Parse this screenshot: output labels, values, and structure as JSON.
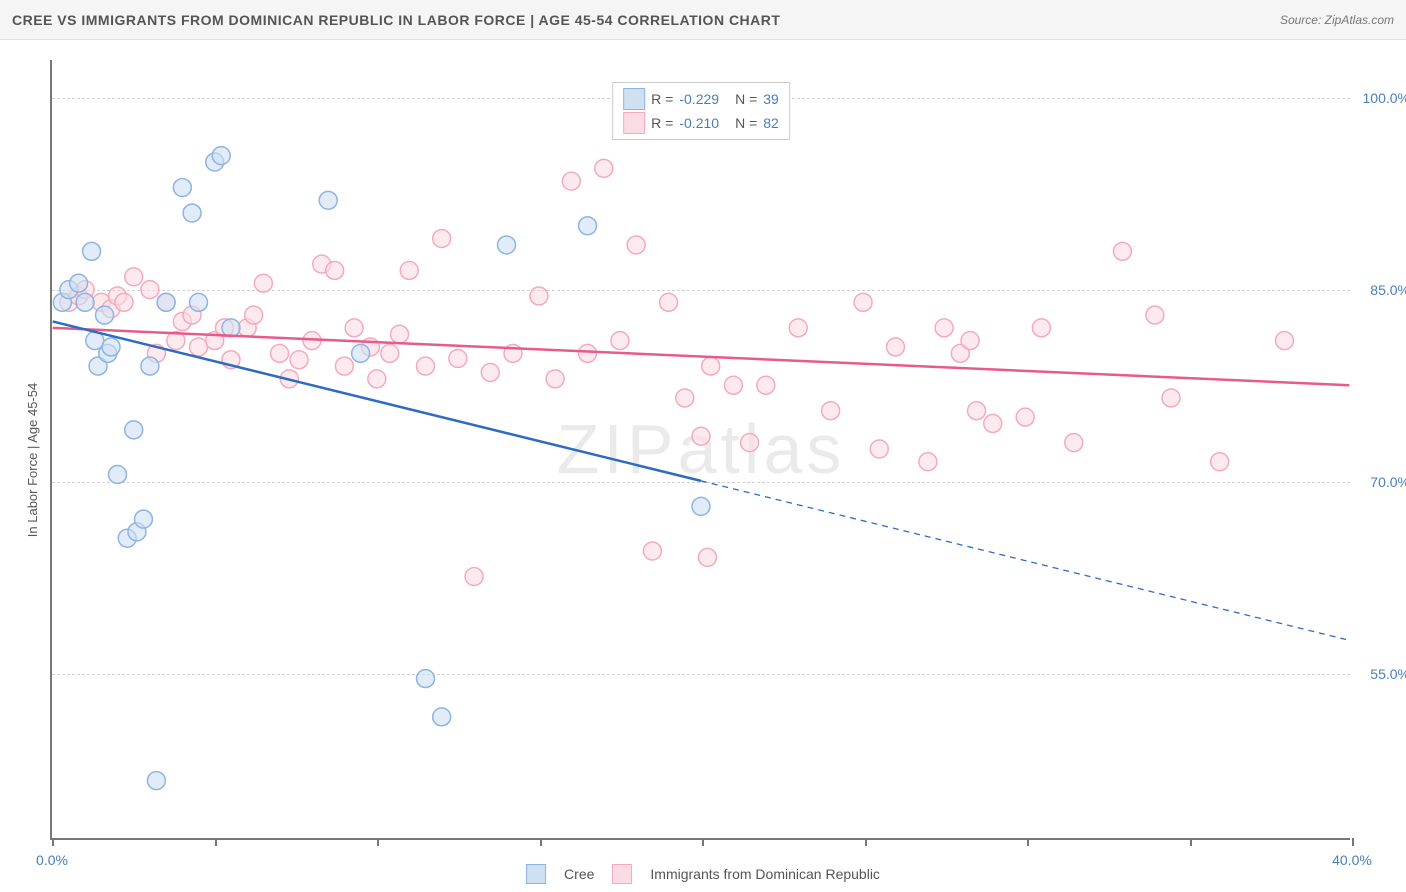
{
  "header": {
    "title": "CREE VS IMMIGRANTS FROM DOMINICAN REPUBLIC IN LABOR FORCE | AGE 45-54 CORRELATION CHART",
    "source": "Source: ZipAtlas.com"
  },
  "chart": {
    "type": "scatter",
    "y_axis_title": "In Labor Force | Age 45-54",
    "watermark": "ZIPatlas",
    "xlim": [
      0,
      40
    ],
    "ylim": [
      42,
      103
    ],
    "x_ticks": [
      0,
      5,
      10,
      15,
      20,
      25,
      30,
      35,
      40
    ],
    "x_tick_labels": {
      "0": "0.0%",
      "40": "40.0%"
    },
    "y_ticks": [
      55,
      70,
      85,
      100
    ],
    "y_tick_labels": {
      "55": "55.0%",
      "70": "70.0%",
      "85": "85.0%",
      "100": "100.0%"
    },
    "background_color": "#ffffff",
    "grid_color": "#d0d0d0",
    "axis_color": "#777777",
    "tick_label_color": "#4a7ebb",
    "marker_radius": 9,
    "marker_fill_opacity": 0.25,
    "marker_stroke_width": 1.5,
    "line_width": 2.5,
    "series": {
      "cree": {
        "label": "Cree",
        "color": "#8db4e2",
        "fill": "#cfe0f3",
        "line_color": "#2e6cc4",
        "R": "-0.229",
        "N": "39",
        "regression": {
          "x1": 0,
          "y1": 82.5,
          "x2": 20,
          "y2": 70,
          "x1_solid": 0,
          "x2_solid": 20,
          "x2_dash": 40,
          "y2_dash": 57.5
        },
        "points": [
          [
            0.3,
            84
          ],
          [
            0.5,
            85
          ],
          [
            0.8,
            85.5
          ],
          [
            1.0,
            84
          ],
          [
            1.2,
            88
          ],
          [
            1.3,
            81
          ],
          [
            1.4,
            79
          ],
          [
            1.6,
            83
          ],
          [
            1.7,
            80
          ],
          [
            1.8,
            80.5
          ],
          [
            2.0,
            70.5
          ],
          [
            2.3,
            65.5
          ],
          [
            2.5,
            74
          ],
          [
            2.6,
            66
          ],
          [
            2.8,
            67
          ],
          [
            3.0,
            79
          ],
          [
            3.2,
            46.5
          ],
          [
            3.5,
            84
          ],
          [
            4.0,
            93
          ],
          [
            4.3,
            91
          ],
          [
            4.5,
            84
          ],
          [
            5.0,
            95
          ],
          [
            5.2,
            95.5
          ],
          [
            5.5,
            82
          ],
          [
            8.5,
            92
          ],
          [
            9.5,
            80
          ],
          [
            11.5,
            54.5
          ],
          [
            12.0,
            51.5
          ],
          [
            14.0,
            88.5
          ],
          [
            16.5,
            90
          ],
          [
            20.0,
            68
          ]
        ]
      },
      "dominican": {
        "label": "Immigants from Dominican Republic",
        "label_display": "Immigrants from Dominican Republic",
        "color": "#f5a9bc",
        "fill": "#fbdce5",
        "line_color": "#e85a8a",
        "R": "-0.210",
        "N": "82",
        "regression": {
          "x1": 0,
          "y1": 82,
          "x2": 40,
          "y2": 77.5
        },
        "points": [
          [
            0.5,
            84
          ],
          [
            0.8,
            84.5
          ],
          [
            1.0,
            85
          ],
          [
            1.5,
            84
          ],
          [
            1.8,
            83.5
          ],
          [
            2.0,
            84.5
          ],
          [
            2.2,
            84
          ],
          [
            2.5,
            86
          ],
          [
            3.0,
            85
          ],
          [
            3.2,
            80
          ],
          [
            3.5,
            84
          ],
          [
            3.8,
            81
          ],
          [
            4.0,
            82.5
          ],
          [
            4.3,
            83
          ],
          [
            4.5,
            80.5
          ],
          [
            5.0,
            81
          ],
          [
            5.3,
            82
          ],
          [
            5.5,
            79.5
          ],
          [
            6.0,
            82
          ],
          [
            6.2,
            83
          ],
          [
            6.5,
            85.5
          ],
          [
            7.0,
            80
          ],
          [
            7.3,
            78
          ],
          [
            7.6,
            79.5
          ],
          [
            8.0,
            81
          ],
          [
            8.3,
            87
          ],
          [
            8.7,
            86.5
          ],
          [
            9.0,
            79
          ],
          [
            9.3,
            82
          ],
          [
            9.8,
            80.5
          ],
          [
            10.0,
            78
          ],
          [
            10.4,
            80
          ],
          [
            10.7,
            81.5
          ],
          [
            11.0,
            86.5
          ],
          [
            11.5,
            79
          ],
          [
            12.0,
            89
          ],
          [
            12.5,
            79.6
          ],
          [
            13.0,
            62.5
          ],
          [
            13.5,
            78.5
          ],
          [
            14.2,
            80
          ],
          [
            15.0,
            84.5
          ],
          [
            15.5,
            78
          ],
          [
            16.0,
            93.5
          ],
          [
            16.5,
            80
          ],
          [
            17.0,
            94.5
          ],
          [
            17.5,
            81
          ],
          [
            18.0,
            88.5
          ],
          [
            18.5,
            64.5
          ],
          [
            19.0,
            84
          ],
          [
            19.5,
            76.5
          ],
          [
            20.0,
            73.5
          ],
          [
            20.2,
            64
          ],
          [
            20.3,
            79
          ],
          [
            21.0,
            77.5
          ],
          [
            21.5,
            73
          ],
          [
            22.0,
            77.5
          ],
          [
            23.0,
            82
          ],
          [
            24.0,
            75.5
          ],
          [
            25.0,
            84
          ],
          [
            25.5,
            72.5
          ],
          [
            26.0,
            80.5
          ],
          [
            27.0,
            71.5
          ],
          [
            27.5,
            82
          ],
          [
            28.0,
            80
          ],
          [
            28.3,
            81
          ],
          [
            28.5,
            75.5
          ],
          [
            29.0,
            74.5
          ],
          [
            30.0,
            75
          ],
          [
            30.5,
            82
          ],
          [
            31.5,
            73
          ],
          [
            33.0,
            88
          ],
          [
            34.0,
            83
          ],
          [
            34.5,
            76.5
          ],
          [
            36.0,
            71.5
          ],
          [
            38.0,
            81
          ]
        ]
      }
    }
  }
}
